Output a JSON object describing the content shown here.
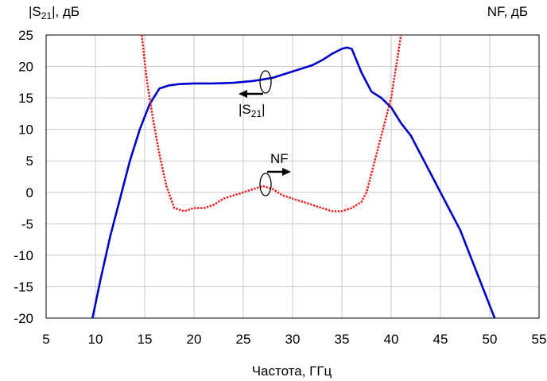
{
  "chart_data": {
    "type": "line",
    "xlabel": "Частота, ГГц",
    "ylabel_left": "|S21|, дБ",
    "ylabel_right": "NF, дБ",
    "xlim": [
      5,
      55
    ],
    "ylim": [
      -20,
      25
    ],
    "xticks": [
      5,
      10,
      15,
      20,
      25,
      30,
      35,
      40,
      45,
      50,
      55
    ],
    "yticks": [
      -20,
      -15,
      -10,
      -5,
      0,
      5,
      10,
      15,
      20,
      25
    ],
    "grid": true,
    "series": [
      {
        "name": "|S21|",
        "color": "#0000cc",
        "style": "solid",
        "x": [
          9.7,
          10.5,
          11.5,
          12.5,
          13.5,
          14.5,
          15.5,
          16.5,
          17.5,
          18.5,
          20,
          22,
          24,
          26,
          28,
          30,
          32,
          33,
          34,
          35,
          35.5,
          36,
          37,
          38,
          39,
          40,
          41,
          42,
          43,
          44,
          45,
          46,
          47,
          48,
          49,
          50,
          50.5
        ],
        "values": [
          -20,
          -14,
          -7,
          -1,
          5,
          10,
          14,
          16.5,
          17,
          17.2,
          17.3,
          17.3,
          17.4,
          17.7,
          18.2,
          19.2,
          20.2,
          21,
          22,
          22.8,
          23,
          22.8,
          19,
          16,
          15,
          13.5,
          11,
          9,
          6,
          3,
          0,
          -3,
          -6,
          -10,
          -14,
          -18,
          -20
        ]
      },
      {
        "name": "NF",
        "color": "#ee2222",
        "style": "dotted",
        "x": [
          14.7,
          15.2,
          15.8,
          16.5,
          17.2,
          18,
          19,
          20,
          21,
          22,
          23,
          24,
          25,
          26,
          27,
          28,
          29,
          30,
          31,
          32,
          33,
          34,
          35,
          36,
          37,
          37.5,
          38,
          38.5,
          39,
          39.5,
          40,
          40.5,
          41
        ],
        "values": [
          25,
          18,
          12,
          6,
          1,
          -2.5,
          -3,
          -2.5,
          -2.5,
          -2,
          -1,
          -0.5,
          0,
          0.5,
          1,
          0.5,
          -0.5,
          -1,
          -1.5,
          -2,
          -2.5,
          -3,
          -3,
          -2.5,
          -1.5,
          0,
          3,
          6,
          9,
          12,
          15,
          20,
          25
        ]
      }
    ],
    "annotations": [
      {
        "text": "|S21|",
        "points_to": "left-axis"
      },
      {
        "text": "NF",
        "points_to": "right-axis"
      }
    ]
  }
}
